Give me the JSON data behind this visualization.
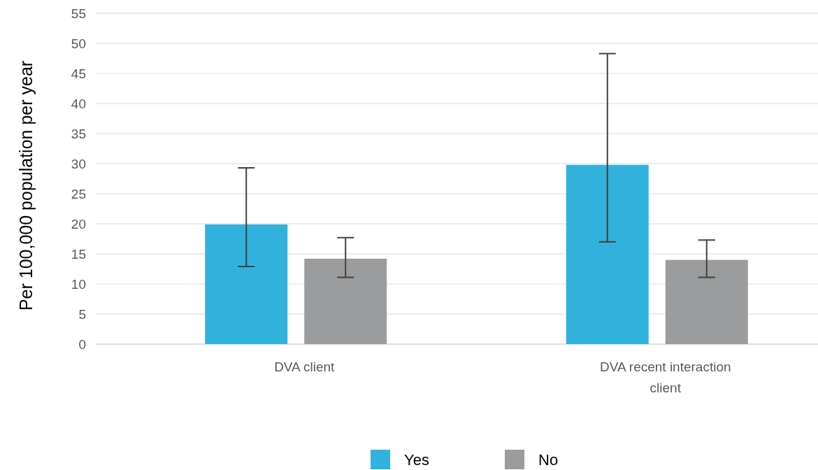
{
  "chart_data": {
    "type": "bar",
    "ylabel": "Per 100,000 population per year",
    "categories": [
      "DVA client",
      "DVA recent interaction client"
    ],
    "series": [
      {
        "name": "Yes",
        "color": "#31b2dc",
        "values": [
          19.9,
          29.8
        ],
        "errors": [
          [
            12.9,
            29.3
          ],
          [
            17.0,
            48.3
          ]
        ]
      },
      {
        "name": "No",
        "color": "#9a9c9d",
        "values": [
          14.2,
          14.0
        ],
        "errors": [
          [
            11.1,
            17.7
          ],
          [
            11.1,
            17.3
          ]
        ]
      }
    ],
    "ylim": [
      0,
      55
    ],
    "yticks": [
      0,
      5,
      10,
      15,
      20,
      25,
      30,
      35,
      40,
      45,
      50,
      55
    ],
    "grid": "y",
    "legend": "bottom"
  }
}
